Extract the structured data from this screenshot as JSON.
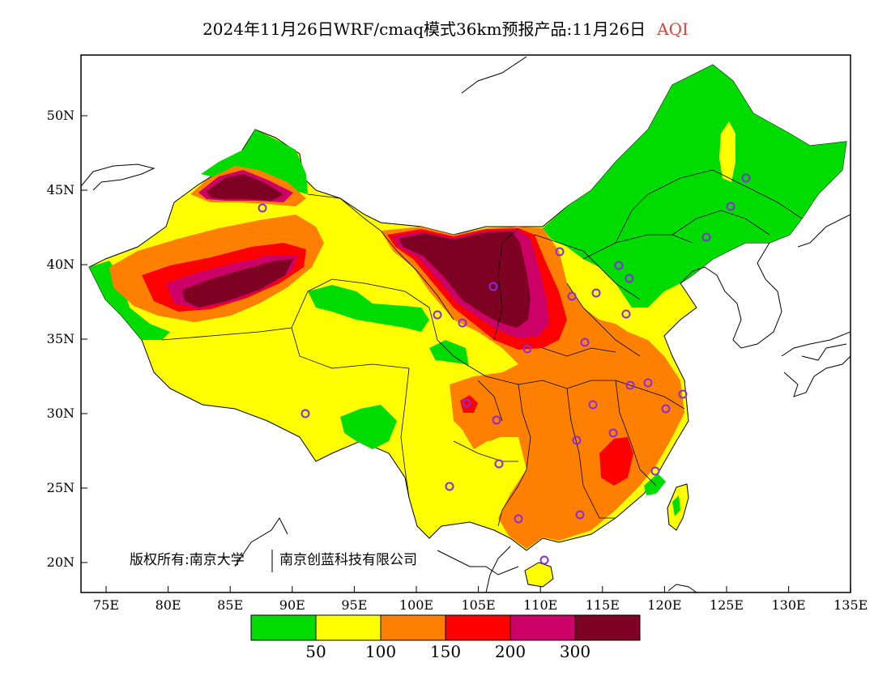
{
  "title": {
    "text": "2024年11月26日WRF/cmaq模式36km预报产品:11月26日",
    "product": "AQI",
    "product_color": "#e0403c"
  },
  "axes": {
    "lat_ticks": [
      "50N",
      "45N",
      "40N",
      "35N",
      "30N",
      "25N",
      "20N"
    ],
    "lon_ticks": [
      "75E",
      "80E",
      "85E",
      "90E",
      "95E",
      "100E",
      "105E",
      "110E",
      "115E",
      "120E",
      "125E",
      "130E",
      "135E"
    ]
  },
  "copyright": {
    "left": "版权所有:南京大学",
    "right": "南京创蓝科技有限公司"
  },
  "colorbar": {
    "labels": [
      "50",
      "100",
      "150",
      "200",
      "300"
    ],
    "colors": [
      "#00dc00",
      "#ffff00",
      "#ff8000",
      "#ff0000",
      "#cc0066",
      "#7e0023"
    ]
  },
  "map_colors": {
    "good": "#00dc00",
    "moderate": "#ffff00",
    "sensitive": "#ff8000",
    "unhealthy": "#ff0000",
    "very_unhealthy": "#cc0066",
    "hazardous": "#7e0023",
    "station": "#8a2be2"
  }
}
